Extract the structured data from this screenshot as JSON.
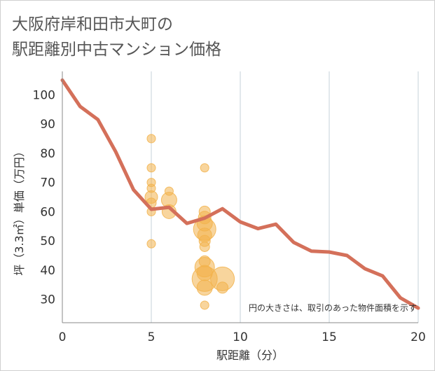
{
  "chart_data": {
    "type": "scatter",
    "title_lines": [
      "大阪府岸和田市大町の",
      "駅距離別中古マンション価格"
    ],
    "xlabel": "駅距離（分）",
    "ylabel": "坪（3.3㎡）単価（万円）",
    "xlim": [
      0,
      20
    ],
    "ylim": [
      22,
      108
    ],
    "x_ticks": [
      0,
      5,
      10,
      15,
      20
    ],
    "y_ticks": [
      30,
      40,
      50,
      60,
      70,
      80,
      90,
      100
    ],
    "grid": true,
    "note": "円の大きさは、取引のあった物件面積を示す",
    "colors": {
      "bubble": "#f2b34c",
      "line": "#d4705a",
      "grid": "#c5d0da",
      "text": "#333333"
    },
    "series": [
      {
        "type": "line",
        "x": [
          0,
          1,
          2,
          3,
          4,
          5,
          6,
          7,
          8,
          9,
          10,
          11,
          12,
          13,
          14,
          15,
          16,
          17,
          18,
          19,
          20
        ],
        "y": [
          105,
          96,
          91.5,
          80.5,
          67.5,
          60.8,
          61.5,
          56,
          57.8,
          61,
          56.5,
          54.2,
          55.7,
          49.5,
          46.5,
          46.2,
          45,
          40.5,
          38,
          30.5,
          27
        ]
      },
      {
        "type": "bubble",
        "points": [
          {
            "x": 5,
            "y": 85,
            "s": 6
          },
          {
            "x": 5,
            "y": 75,
            "s": 6
          },
          {
            "x": 5,
            "y": 70,
            "s": 6
          },
          {
            "x": 5,
            "y": 68,
            "s": 6
          },
          {
            "x": 5,
            "y": 65,
            "s": 9
          },
          {
            "x": 5,
            "y": 63,
            "s": 7
          },
          {
            "x": 5,
            "y": 60,
            "s": 6
          },
          {
            "x": 5,
            "y": 49,
            "s": 6
          },
          {
            "x": 6,
            "y": 67,
            "s": 6
          },
          {
            "x": 6,
            "y": 64,
            "s": 11
          },
          {
            "x": 6,
            "y": 60,
            "s": 10
          },
          {
            "x": 8,
            "y": 75,
            "s": 6
          },
          {
            "x": 8,
            "y": 60,
            "s": 8
          },
          {
            "x": 8,
            "y": 58,
            "s": 9
          },
          {
            "x": 8,
            "y": 56,
            "s": 11
          },
          {
            "x": 8,
            "y": 54,
            "s": 16
          },
          {
            "x": 8,
            "y": 52,
            "s": 10
          },
          {
            "x": 8,
            "y": 50,
            "s": 8
          },
          {
            "x": 8,
            "y": 48,
            "s": 7
          },
          {
            "x": 8,
            "y": 43,
            "s": 8
          },
          {
            "x": 8,
            "y": 41,
            "s": 14
          },
          {
            "x": 8,
            "y": 39,
            "s": 11
          },
          {
            "x": 8,
            "y": 37,
            "s": 18
          },
          {
            "x": 8,
            "y": 34,
            "s": 11
          },
          {
            "x": 8,
            "y": 28,
            "s": 6
          },
          {
            "x": 9,
            "y": 37,
            "s": 17
          },
          {
            "x": 9,
            "y": 34,
            "s": 8
          }
        ]
      }
    ]
  }
}
